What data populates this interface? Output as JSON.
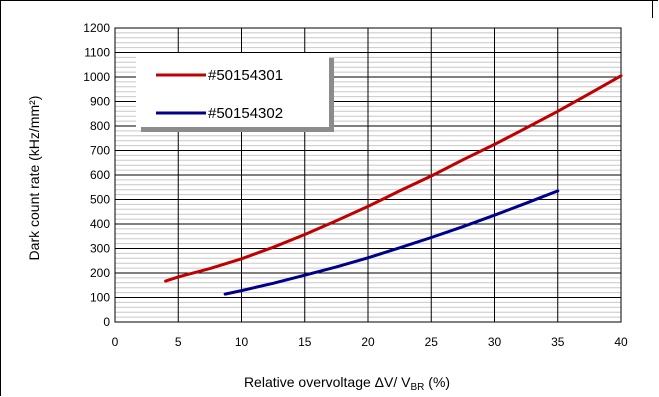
{
  "chart_data": {
    "type": "line",
    "title": "",
    "xlabel": {
      "main": "Relative overvoltage  ΔV/ V",
      "sub": "BR",
      "tail": " (%)"
    },
    "ylabel": "Dark count rate (kHz/mm²)",
    "xlim": [
      0,
      40
    ],
    "ylim": [
      0,
      1200
    ],
    "x_ticks": [
      0,
      5,
      10,
      15,
      20,
      25,
      30,
      35,
      40
    ],
    "y_ticks": [
      0,
      100,
      200,
      300,
      400,
      500,
      600,
      700,
      800,
      900,
      1000,
      1100,
      1200
    ],
    "y_minor_step": 20,
    "grid": true,
    "legend_position": "top-left",
    "series": [
      {
        "name": "#50154301",
        "color": "#c00000",
        "x": [
          4,
          5,
          7.5,
          10,
          12.5,
          15,
          17.5,
          20,
          22.5,
          25,
          27.5,
          30,
          32.5,
          35,
          37.5,
          40
        ],
        "y": [
          167,
          184,
          218,
          258,
          305,
          357,
          413,
          472,
          535,
          596,
          662,
          725,
          792,
          860,
          932,
          1005
        ]
      },
      {
        "name": "#50154302",
        "color": "#00008b",
        "x": [
          8.7,
          10,
          12.5,
          15,
          17.5,
          20,
          22.5,
          25,
          27.5,
          30,
          32.5,
          35
        ],
        "y": [
          114,
          128,
          158,
          191,
          225,
          262,
          303,
          345,
          389,
          436,
          485,
          535
        ]
      }
    ]
  }
}
